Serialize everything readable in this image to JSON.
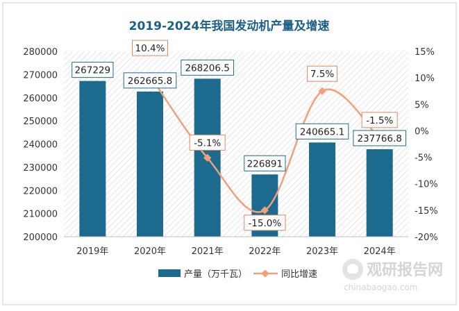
{
  "chart_data": {
    "type": "bar",
    "title": "2019-2024年我国发动机产量及增速",
    "categories": [
      "2019年",
      "2020年",
      "2021年",
      "2022年",
      "2023年",
      "2024年"
    ],
    "series": [
      {
        "name": "产量（万千瓦）",
        "type": "bar",
        "axis": "left",
        "values": [
          267229,
          262665.8,
          268206.5,
          226891,
          240665.1,
          237766.8
        ],
        "labels": [
          "267229",
          "262665.8",
          "268206.5",
          "226891",
          "240665.1",
          "237766.8"
        ]
      },
      {
        "name": "同比增速",
        "type": "line",
        "axis": "right",
        "values": [
          null,
          10.4,
          -5.1,
          -15.0,
          7.5,
          -1.5
        ],
        "labels": [
          "",
          "10.4%",
          "-5.1%",
          "-15.0%",
          "7.5%",
          "-1.5%"
        ]
      }
    ],
    "y_left": {
      "min": 200000,
      "max": 280000,
      "ticks": [
        "280000",
        "270000",
        "260000",
        "250000",
        "240000",
        "230000",
        "220000",
        "210000",
        "200000"
      ]
    },
    "y_right": {
      "min": -20,
      "max": 15,
      "ticks": [
        "15%",
        "10%",
        "5%",
        "0%",
        "-5%",
        "-10%",
        "-15%",
        "-20%"
      ]
    },
    "legend_position": "bottom",
    "grid": false,
    "colors": {
      "bar": "#1c6b8f",
      "line": "#f0a07a",
      "title": "#1c5f86",
      "label_border": "#e8835a"
    }
  },
  "watermark": {
    "text": "观研报告网",
    "url": "chinabaogao.com"
  }
}
